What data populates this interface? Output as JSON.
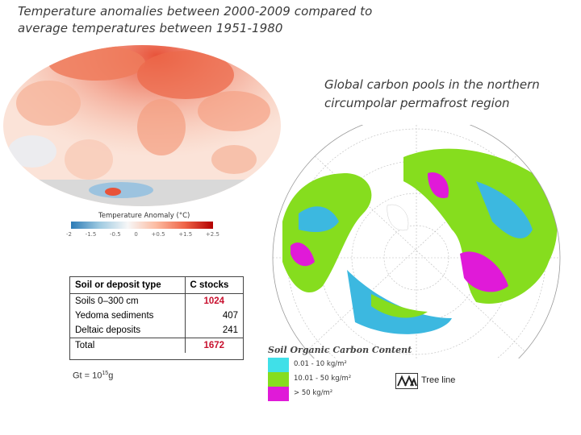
{
  "title": {
    "line1": "Temperature anomalies between 2000-2009 compared to",
    "line2": "average temperatures between 1951-1980"
  },
  "right_caption": {
    "line1": "Global carbon pools in the northern",
    "line2": "circumpolar permafrost region"
  },
  "temperature_scale": {
    "label": "Temperature Anomaly (°C)",
    "ticks": [
      "-2",
      "-1.5",
      "-0.5",
      "0",
      "+0.5",
      "+1.5",
      "+2.5"
    ]
  },
  "carbon_table": {
    "headers": [
      "Soil or deposit type",
      "C stocks"
    ],
    "rows": [
      {
        "type": "Soils 0–300 cm",
        "value": "1024"
      },
      {
        "type": "Yedoma sediments",
        "value": "407"
      },
      {
        "type": "Deltaic deposits",
        "value": "241"
      }
    ],
    "total": {
      "type": "Total",
      "value": "1672"
    }
  },
  "gt_note": {
    "base": "Gt = 10",
    "exp": "15",
    "unit": "g"
  },
  "soc_legend": {
    "title": "Soil Organic Carbon Content",
    "items": [
      {
        "label": "0.01 - 10 kg/m²",
        "color": "#40e0e8"
      },
      {
        "label": "10.01 - 50 kg/m²",
        "color": "#86dd1e"
      },
      {
        "label": "> 50 kg/m²",
        "color": "#e01ad8"
      }
    ],
    "treeline_label": "Tree line"
  }
}
